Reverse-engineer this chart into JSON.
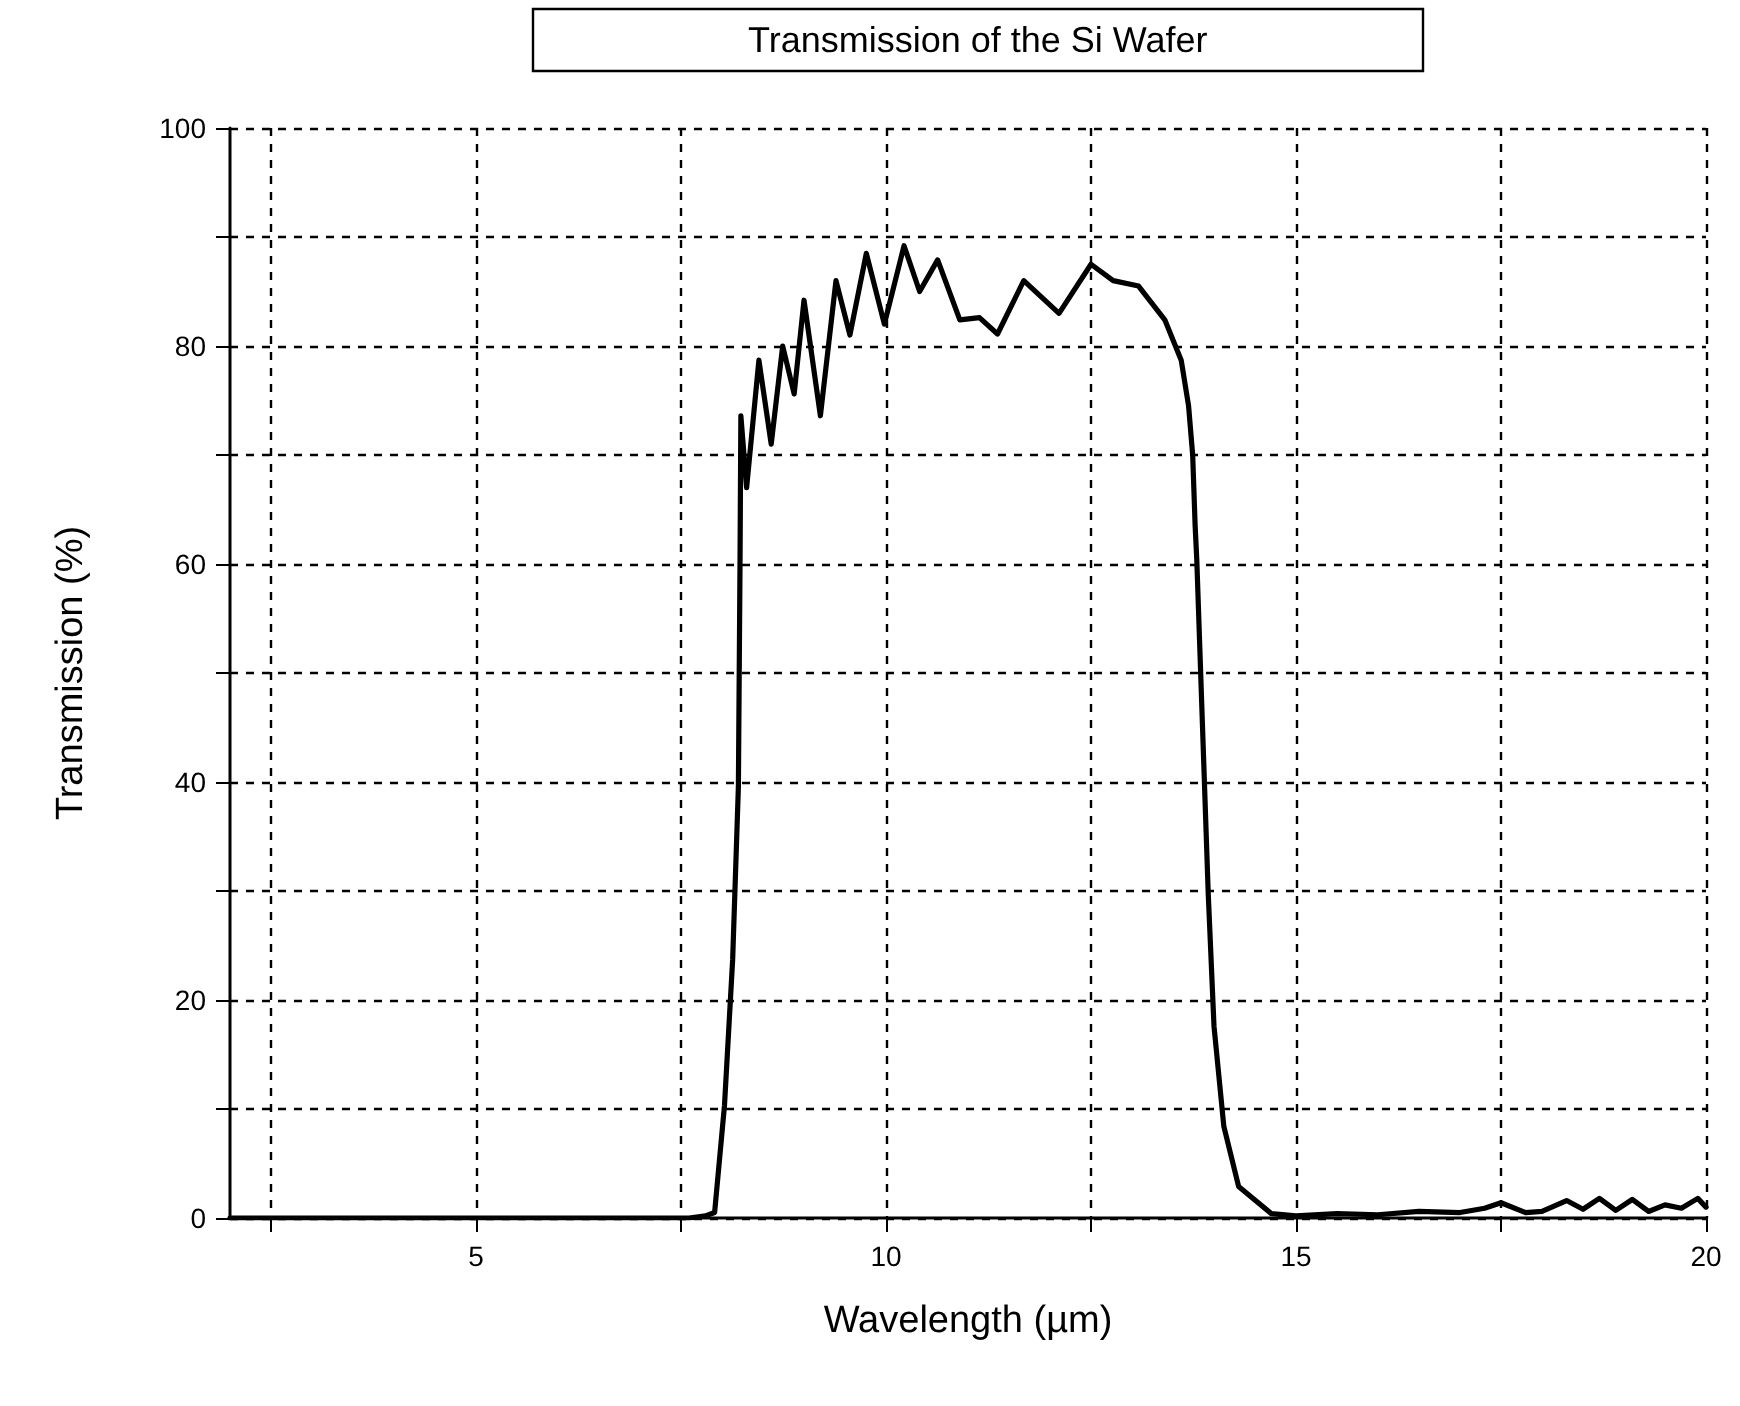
{
  "chart_data": {
    "type": "line",
    "title": "Transmission of the Si Wafer",
    "xlabel": "Wavelength (µm)",
    "ylabel": "Transmission (%)",
    "series": [
      {
        "color": "#000000",
        "x": [
          2,
          3,
          4,
          5,
          6,
          7,
          7.6,
          7.8,
          7.91,
          8.03,
          8.13,
          8.2,
          8.22,
          8.23,
          8.3,
          8.45,
          8.6,
          8.74,
          8.88,
          9.0,
          9.2,
          9.39,
          9.56,
          9.76,
          9.98,
          10.22,
          10.41,
          10.63,
          10.9,
          11.14,
          11.36,
          11.68,
          12.11,
          12.5,
          12.77,
          13.08,
          13.4,
          13.6,
          13.69,
          13.74,
          13.77,
          13.79,
          13.93,
          14.0,
          14.12,
          14.3,
          14.7,
          15,
          15.5,
          16,
          16.5,
          17,
          17.3,
          17.5,
          17.8,
          18,
          18.3,
          18.5,
          18.7,
          18.9,
          19.1,
          19.3,
          19.5,
          19.7,
          19.9,
          20
        ],
        "values": [
          0,
          0,
          0,
          0,
          0,
          0,
          0,
          0.2,
          0.5,
          10.3,
          23.7,
          39.6,
          60.4,
          73.6,
          67,
          78.7,
          71,
          80,
          75.6,
          84.2,
          73.6,
          86,
          81,
          88.5,
          82,
          89.2,
          85,
          87.9,
          82.4,
          82.6,
          81.1,
          86,
          83,
          87.5,
          86,
          85.5,
          82.4,
          78.7,
          74.5,
          70,
          63.5,
          60.4,
          29.7,
          17.6,
          8.4,
          2.9,
          0.4,
          0.2,
          0.4,
          0.3,
          0.6,
          0.5,
          0.9,
          1.4,
          0.5,
          0.6,
          1.6,
          0.8,
          1.8,
          0.7,
          1.7,
          0.6,
          1.2,
          0.9,
          1.8,
          1.0
        ]
      }
    ],
    "xlim": [
      2,
      20
    ],
    "xticks": [
      {
        "value": 2.5,
        "label": null
      },
      5,
      {
        "value": 7.5,
        "label": null
      },
      10,
      {
        "value": 12.5,
        "label": null
      },
      15,
      {
        "value": 17.5,
        "label": null
      },
      20
    ],
    "ylim": [
      0,
      100
    ],
    "yticks": [
      0,
      {
        "value": 10,
        "label": null
      },
      20,
      {
        "value": 30,
        "label": null
      },
      40,
      {
        "value": 50,
        "label": null
      },
      60,
      {
        "value": 70,
        "label": null
      },
      80,
      {
        "value": 90,
        "label": null
      },
      100
    ],
    "grid": true,
    "marker": "none",
    "line_style": "solid"
  }
}
